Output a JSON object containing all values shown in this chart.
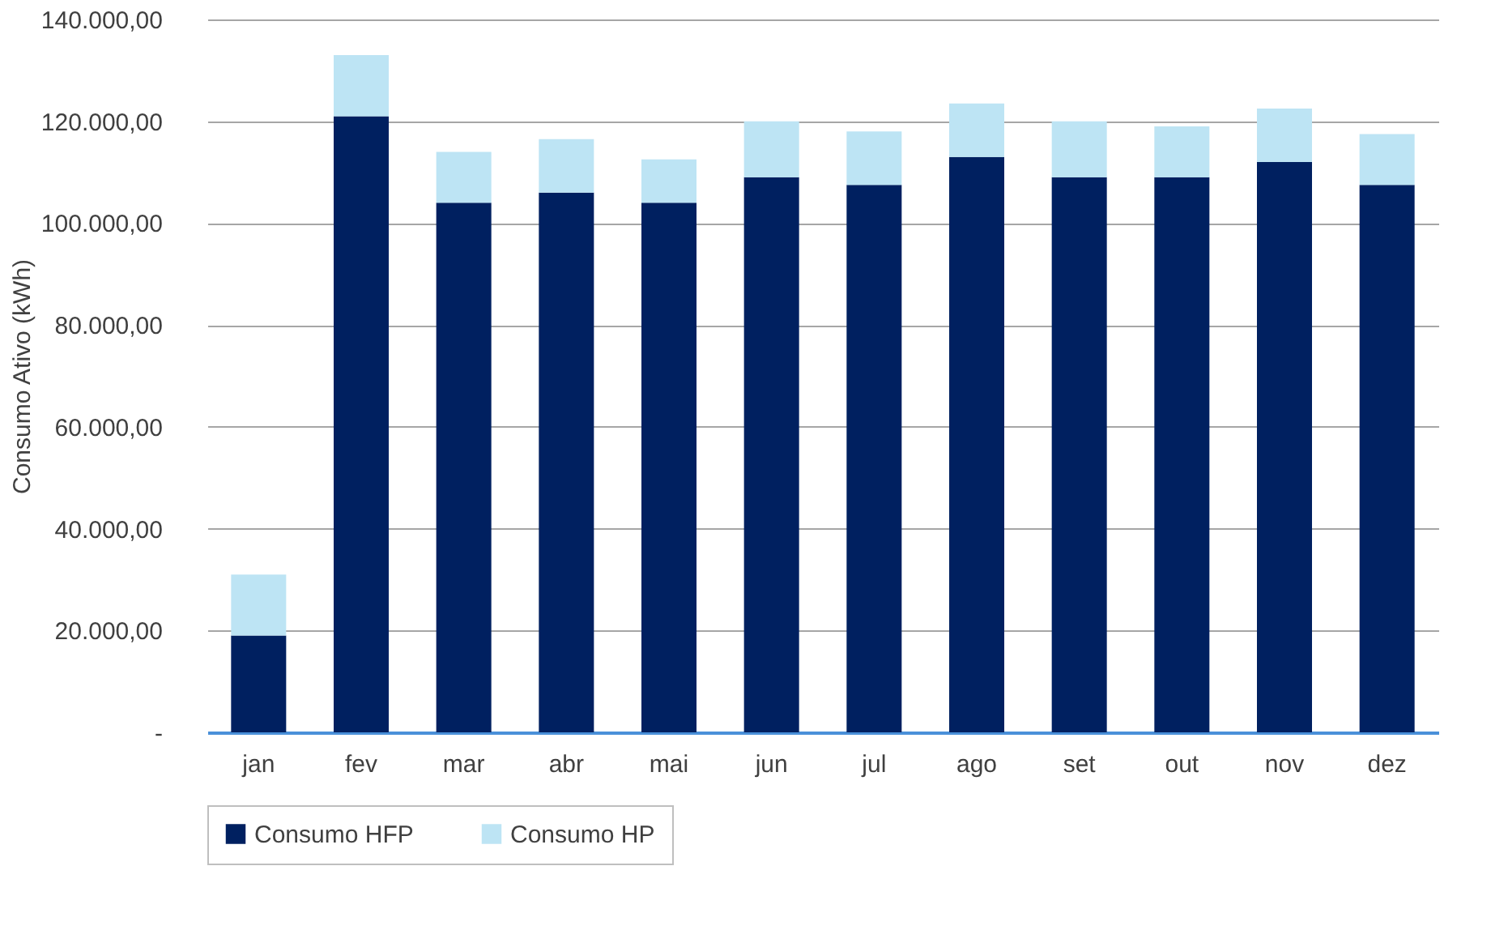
{
  "chart_data": {
    "type": "bar",
    "stacked": true,
    "ylabel": "Consumo Ativo (kWh)",
    "categories": [
      "jan",
      "fev",
      "mar",
      "abr",
      "mai",
      "jun",
      "jul",
      "ago",
      "set",
      "out",
      "nov",
      "dez"
    ],
    "series": [
      {
        "name": "Consumo HFP",
        "color": "#002060",
        "values": [
          19000,
          121000,
          104000,
          106000,
          104000,
          109000,
          107500,
          113000,
          109000,
          109000,
          112000,
          107500
        ]
      },
      {
        "name": "Consumo HP",
        "color": "#bde4f4",
        "values": [
          12000,
          12000,
          10000,
          10500,
          8500,
          11000,
          10500,
          10500,
          11000,
          10000,
          10500,
          10000
        ]
      }
    ],
    "ylim": [
      0,
      140000
    ],
    "yticks": [
      {
        "value": 0,
        "label": "-"
      },
      {
        "value": 20000,
        "label": "20.000,00"
      },
      {
        "value": 40000,
        "label": "40.000,00"
      },
      {
        "value": 60000,
        "label": "60.000,00"
      },
      {
        "value": 80000,
        "label": "80.000,00"
      },
      {
        "value": 100000,
        "label": "100.000,00"
      },
      {
        "value": 120000,
        "label": "120.000,00"
      },
      {
        "value": 140000,
        "label": "140.000,00"
      }
    ],
    "grid": "y",
    "legend": "bottom"
  }
}
